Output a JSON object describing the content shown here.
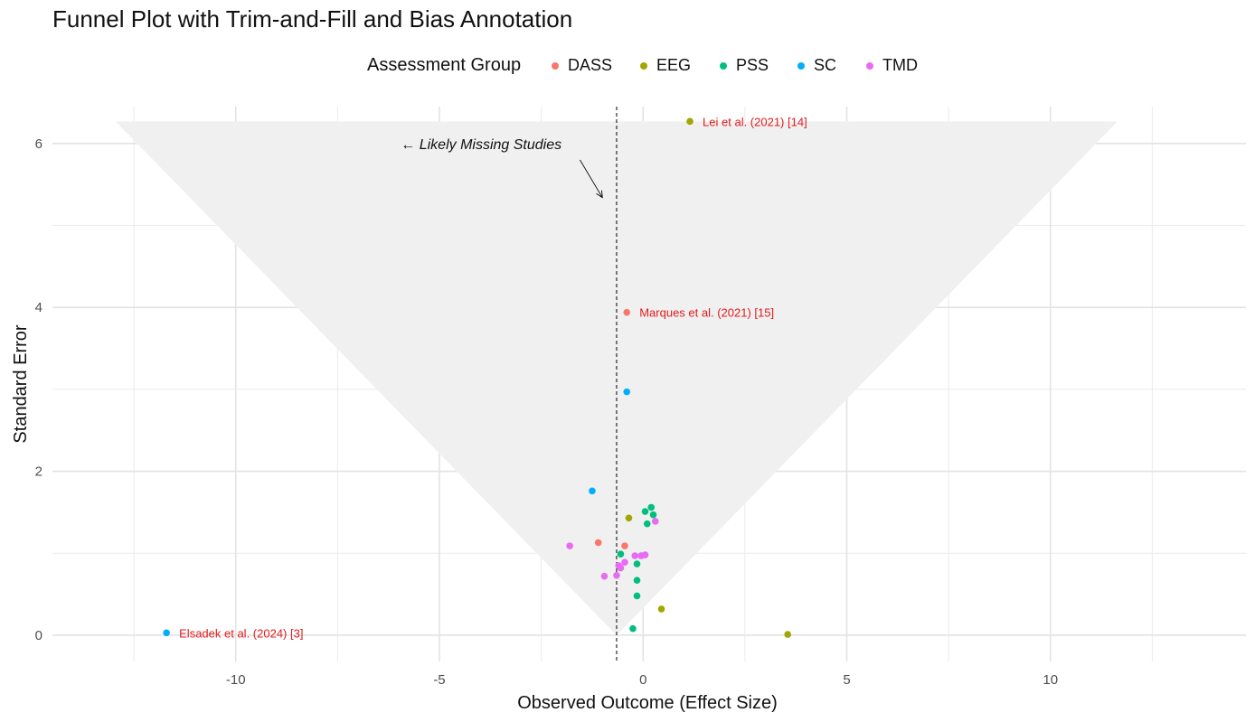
{
  "chart_data": {
    "type": "scatter",
    "title": "Funnel Plot with Trim-and-Fill and Bias Annotation",
    "xlabel": "Observed Outcome (Effect Size)",
    "ylabel": "Standard Error",
    "xlim": [
      -14.5,
      14.8
    ],
    "ylim": [
      -0.32,
      6.45
    ],
    "x_ticks": [
      -10,
      -5,
      0,
      5,
      10
    ],
    "y_ticks": [
      0,
      2,
      4,
      6
    ],
    "grid": true,
    "legend": {
      "title": "Assessment Group",
      "position": "top",
      "entries": [
        {
          "name": "DASS",
          "color": "#F8766D"
        },
        {
          "name": "EEG",
          "color": "#A3A500"
        },
        {
          "name": "PSS",
          "color": "#00BF7D"
        },
        {
          "name": "SC",
          "color": "#00B0F6"
        },
        {
          "name": "TMD",
          "color": "#E76BF3"
        }
      ]
    },
    "funnel": {
      "center": -0.65,
      "apex_se": 0,
      "top_se": 6.27,
      "top_left_x": -12.95,
      "top_right_x": 11.65,
      "color": "#f0f0f0"
    },
    "reference_line_x": -0.65,
    "series": [
      {
        "name": "DASS",
        "color": "#F8766D",
        "points": [
          {
            "x": -0.4,
            "y": 3.94
          },
          {
            "x": -1.1,
            "y": 1.13
          },
          {
            "x": -0.45,
            "y": 1.09
          }
        ]
      },
      {
        "name": "EEG",
        "color": "#A3A500",
        "points": [
          {
            "x": 1.15,
            "y": 6.27
          },
          {
            "x": -0.35,
            "y": 1.43
          },
          {
            "x": 0.45,
            "y": 0.32
          },
          {
            "x": 3.55,
            "y": 0.01
          }
        ]
      },
      {
        "name": "PSS",
        "color": "#00BF7D",
        "points": [
          {
            "x": 0.2,
            "y": 1.56
          },
          {
            "x": 0.05,
            "y": 1.51
          },
          {
            "x": 0.25,
            "y": 1.47
          },
          {
            "x": 0.1,
            "y": 1.36
          },
          {
            "x": -0.55,
            "y": 0.99
          },
          {
            "x": -0.15,
            "y": 0.87
          },
          {
            "x": -0.15,
            "y": 0.67
          },
          {
            "x": -0.15,
            "y": 0.48
          },
          {
            "x": -0.25,
            "y": 0.08
          }
        ]
      },
      {
        "name": "SC",
        "color": "#00B0F6",
        "points": [
          {
            "x": -0.4,
            "y": 2.97
          },
          {
            "x": -1.25,
            "y": 1.76
          },
          {
            "x": -11.7,
            "y": 0.03
          }
        ]
      },
      {
        "name": "TMD",
        "color": "#E76BF3",
        "points": [
          {
            "x": 0.3,
            "y": 1.39
          },
          {
            "x": -1.8,
            "y": 1.09
          },
          {
            "x": -0.2,
            "y": 0.97
          },
          {
            "x": -0.05,
            "y": 0.97
          },
          {
            "x": 0.05,
            "y": 0.98
          },
          {
            "x": -0.45,
            "y": 0.89
          },
          {
            "x": -0.6,
            "y": 0.85
          },
          {
            "x": -0.55,
            "y": 0.82
          },
          {
            "x": -0.65,
            "y": 0.73
          },
          {
            "x": -0.95,
            "y": 0.72
          }
        ]
      }
    ],
    "point_labels": [
      {
        "text": "Lei et al. (2021) [14]",
        "x": 1.15,
        "y": 6.27
      },
      {
        "text": "Marques et al. (2021) [15]",
        "x": -0.4,
        "y": 3.94
      },
      {
        "text": "Elsadek et al. (2024) [3]",
        "x": -11.7,
        "y": 0.03
      }
    ],
    "annotation": {
      "text": "← Likely Missing Studies",
      "text_x": -2.0,
      "text_y": 6.0,
      "arrow_from": [
        -1.55,
        5.8
      ],
      "arrow_to": [
        -1.0,
        5.34
      ]
    }
  }
}
